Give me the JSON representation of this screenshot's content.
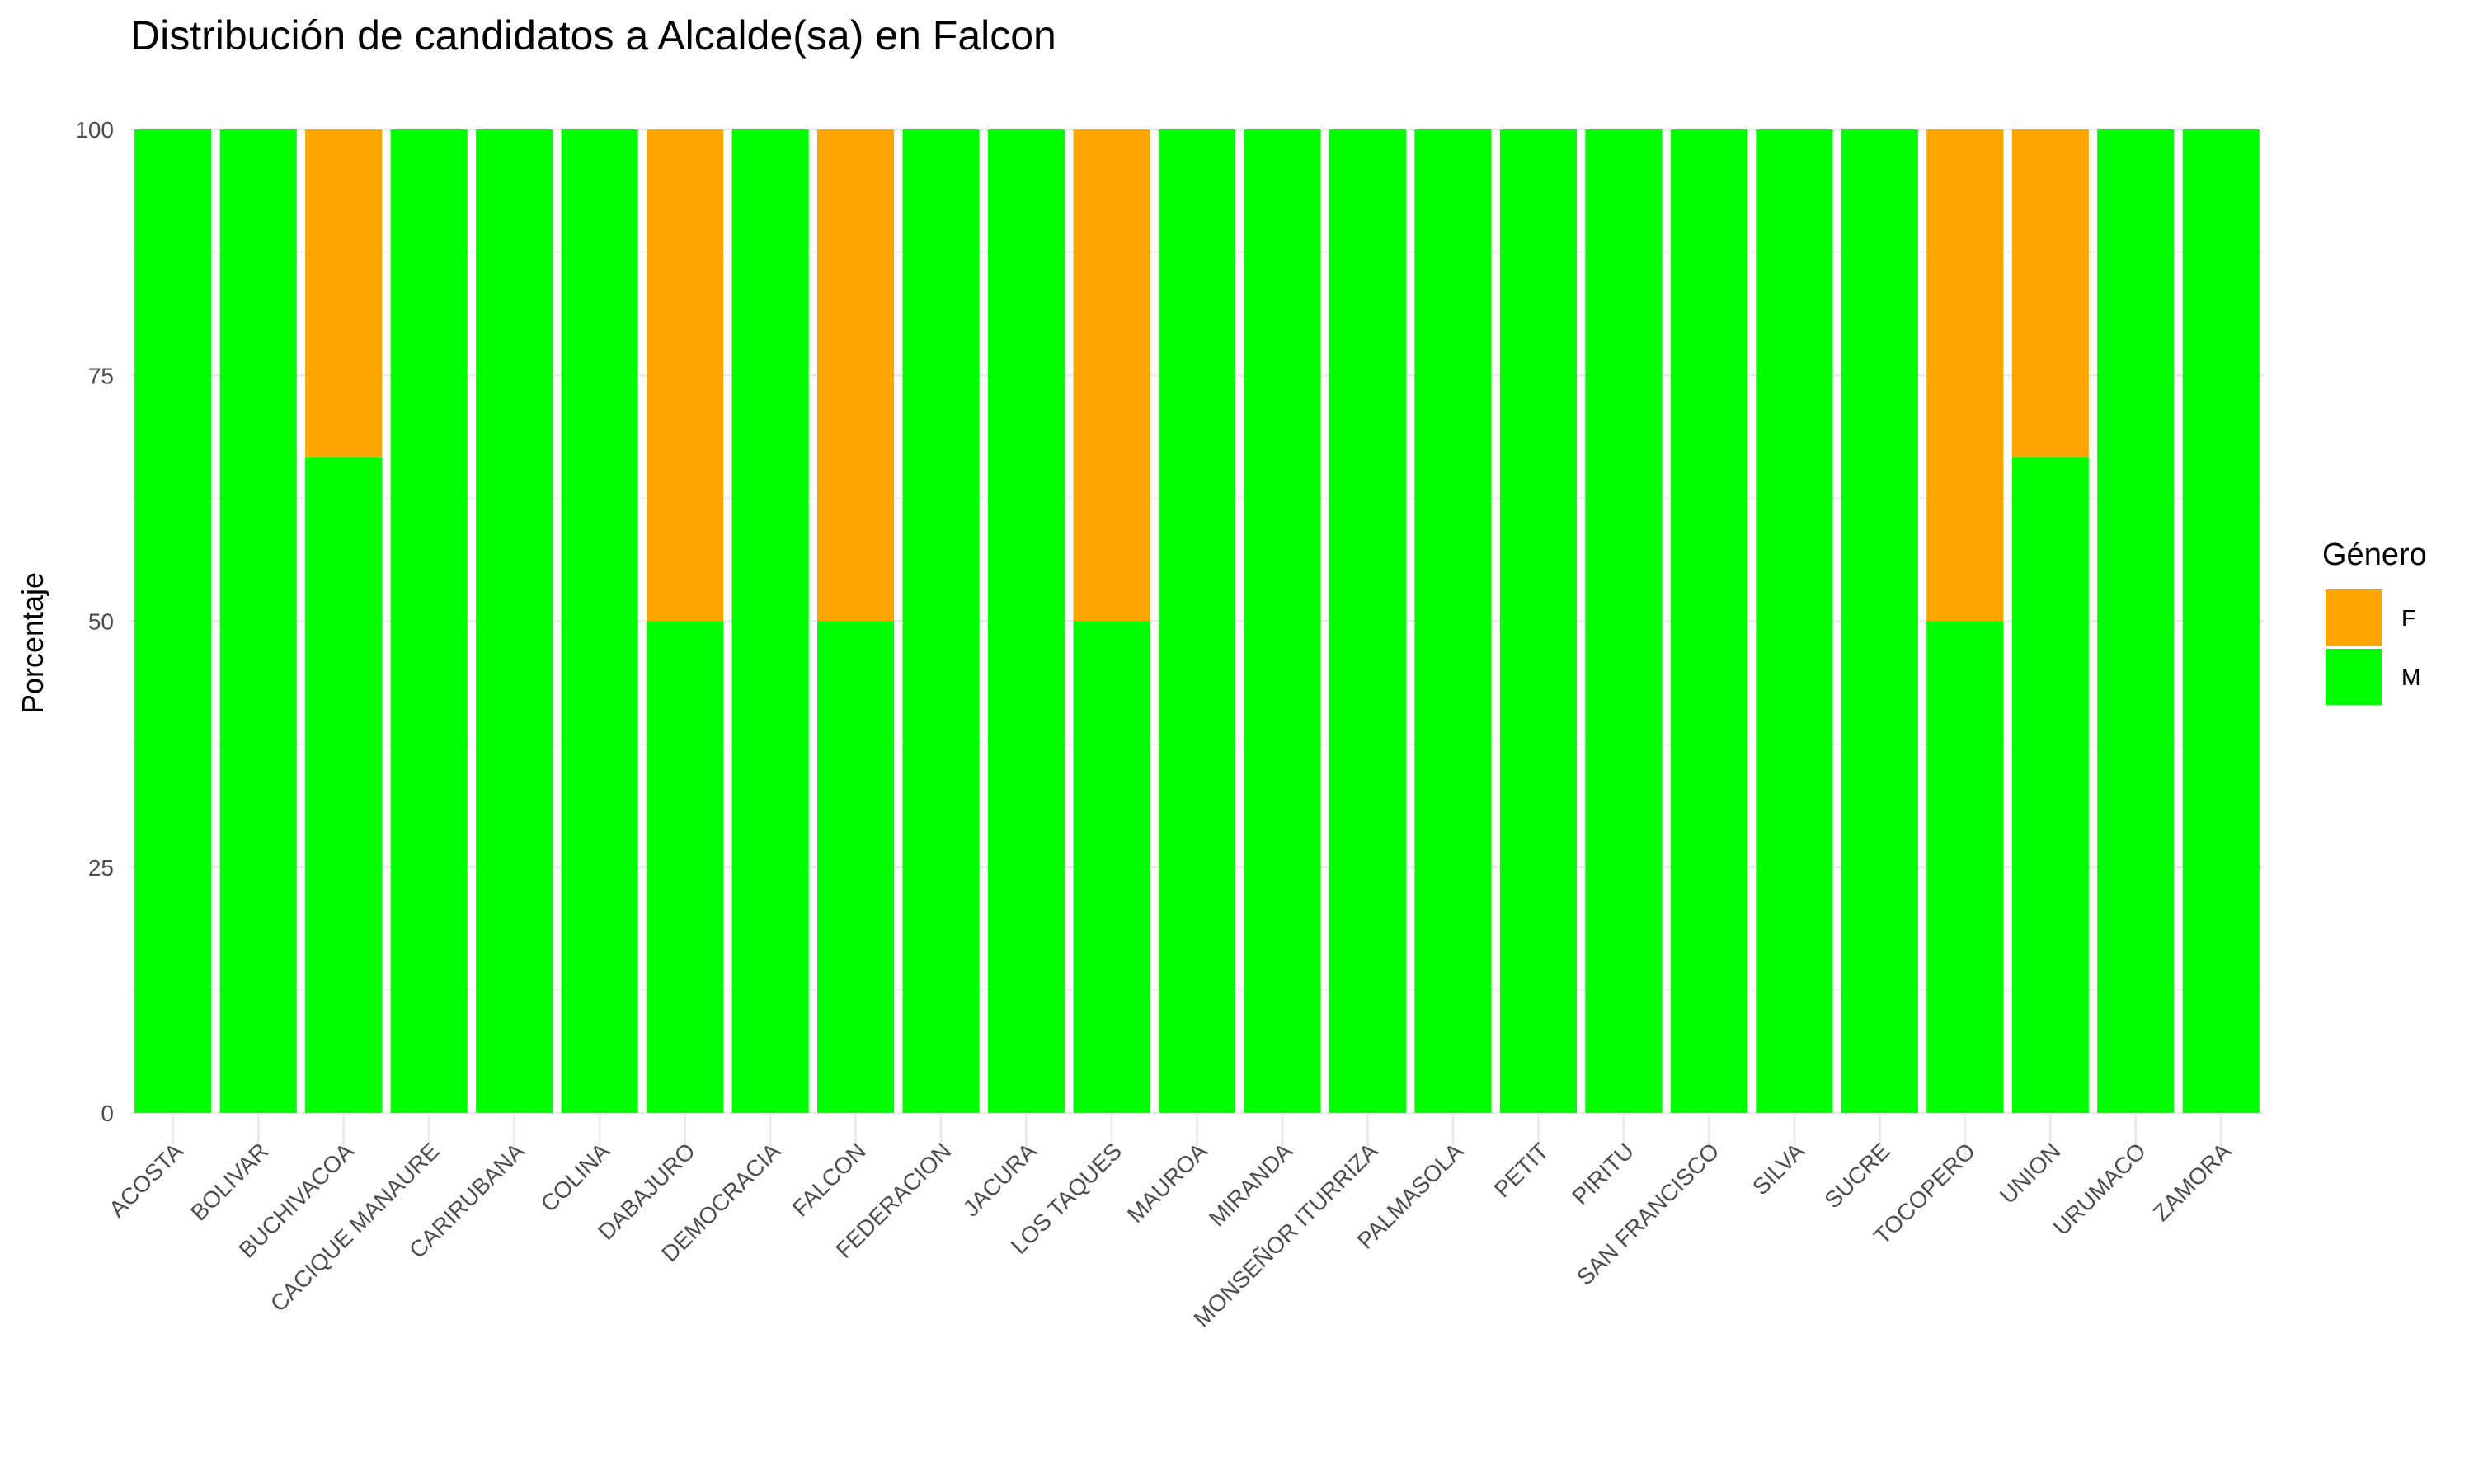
{
  "chart_data": {
    "type": "bar",
    "stacked": true,
    "title": "Distribución de candidatos a Alcalde(sa) en Falcon",
    "xlabel": "",
    "ylabel": "Porcentaje",
    "ylim": [
      0,
      100
    ],
    "yticks": [
      0,
      25,
      50,
      75,
      100
    ],
    "grid": true,
    "legend": {
      "title": "Género",
      "placement": "right"
    },
    "categories": [
      "ACOSTA",
      "BOLIVAR",
      "BUCHIVACOA",
      "CACIQUE MANAURE",
      "CARIRUBANA",
      "COLINA",
      "DABAJURO",
      "DEMOCRACIA",
      "FALCON",
      "FEDERACION",
      "JACURA",
      "LOS TAQUES",
      "MAUROA",
      "MIRANDA",
      "MONSEÑOR ITURRIZA",
      "PALMASOLA",
      "PETIT",
      "PIRITU",
      "SAN FRANCISCO",
      "SILVA",
      "SUCRE",
      "TOCOPERO",
      "UNION",
      "URUMACO",
      "ZAMORA"
    ],
    "series": [
      {
        "name": "M",
        "color": "#00ff00",
        "values": [
          100,
          100,
          66.7,
          100,
          100,
          100,
          50,
          100,
          50,
          100,
          100,
          50,
          100,
          100,
          100,
          100,
          100,
          100,
          100,
          100,
          100,
          50,
          66.7,
          100,
          100
        ]
      },
      {
        "name": "F",
        "color": "#ffa500",
        "values": [
          0,
          0,
          33.3,
          0,
          0,
          0,
          50,
          0,
          50,
          0,
          0,
          50,
          0,
          0,
          0,
          0,
          0,
          0,
          0,
          0,
          0,
          50,
          33.3,
          0,
          0
        ]
      }
    ],
    "legend_order": [
      "F",
      "M"
    ]
  }
}
